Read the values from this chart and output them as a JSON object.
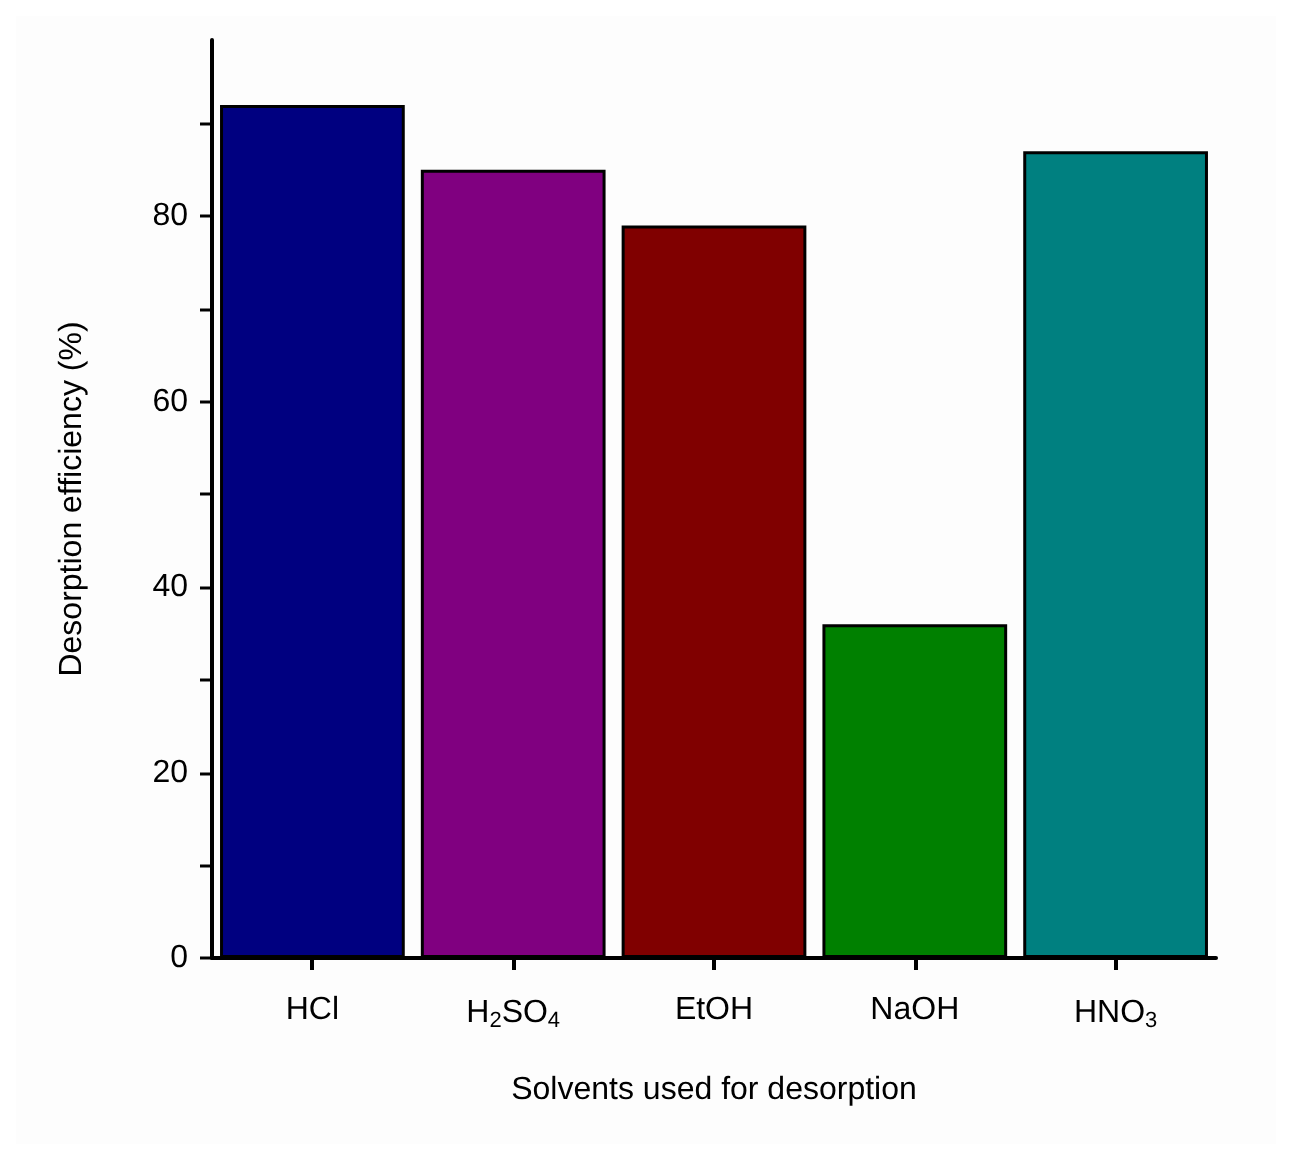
{
  "chart_data": {
    "type": "bar",
    "xlabel": "Solvents used for desorption",
    "ylabel": "Desorption efficiency (%)",
    "categories": [
      "HCl",
      "H$_{2}$SO$_{4}$",
      "EtOH",
      "NaOH",
      "HNO$_{3}$"
    ],
    "values": [
      92,
      85,
      79,
      36,
      87
    ],
    "colors": [
      "#000080",
      "#800080",
      "#800000",
      "#008000",
      "#008080"
    ],
    "ylim": [
      0,
      99
    ],
    "yticks": [
      0,
      {
        "value": 10,
        "label": null
      },
      20,
      {
        "value": 30,
        "label": null
      },
      40,
      {
        "value": 50,
        "label": null
      },
      60,
      {
        "value": 70,
        "label": null
      },
      80,
      {
        "value": 90,
        "label": null
      }
    ],
    "grid": false
  }
}
